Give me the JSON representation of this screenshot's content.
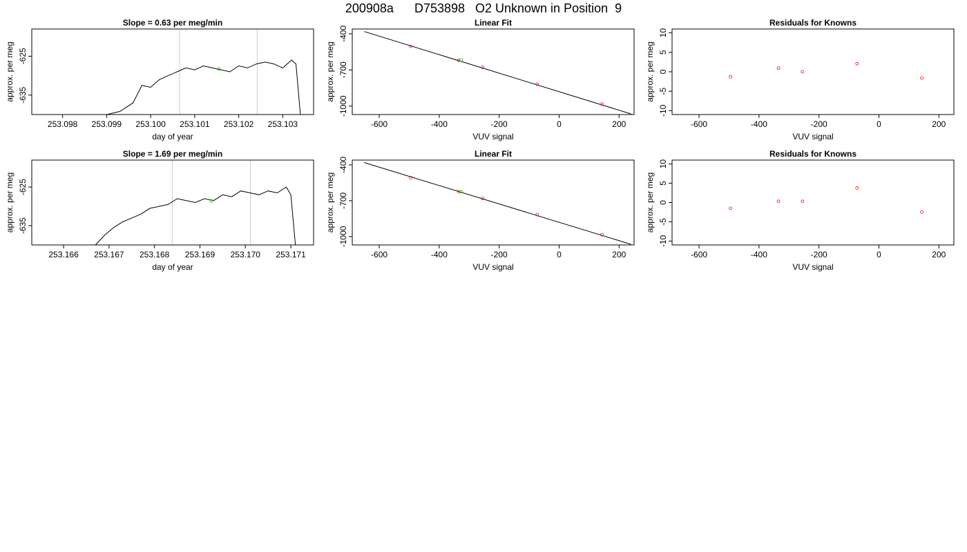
{
  "header": {
    "title": "200908a      D753898   O2 Unknown in Position  9"
  },
  "chart_data": [
    {
      "type": "line",
      "title": "Slope =  0.63  per meg/min",
      "xlabel": "day of year",
      "ylabel": "approx. per meg",
      "xlim": [
        253.0973,
        253.1037
      ],
      "ylim": [
        -640.0,
        -618.0
      ],
      "xticks": [
        253.098,
        253.099,
        253.1,
        253.101,
        253.102,
        253.103
      ],
      "xtick_labels": [
        "253.098",
        "253.099",
        "253.100",
        "253.101",
        "253.102",
        "253.103"
      ],
      "yticks": [
        -625,
        -635
      ],
      "ytick_labels": [
        "-625",
        "-635"
      ],
      "vlines": [
        253.10066,
        253.10242
      ],
      "vline_color": "#cccccc",
      "series": [
        {
          "color": "#000000",
          "x": [
            253.099,
            253.0993,
            253.0996,
            253.0998,
            253.1,
            253.1002,
            253.1004,
            253.1006,
            253.1008,
            253.101,
            253.1012,
            253.1014,
            253.1016,
            253.1018,
            253.102,
            253.1022,
            253.1024,
            253.1026,
            253.1028,
            253.103,
            253.1032,
            253.1033,
            253.1034
          ],
          "y": [
            -640.0,
            -639.2,
            -637.0,
            -632.5,
            -633.0,
            -631.0,
            -630.0,
            -629.0,
            -628.0,
            -628.5,
            -627.5,
            -628.0,
            -628.5,
            -629.0,
            -627.5,
            -628.0,
            -627.0,
            -626.5,
            -627.0,
            -628.0,
            -626.0,
            -627.0,
            -640.0
          ]
        }
      ],
      "highlight_points": {
        "color": "#00cc00",
        "x": [
          253.10155
        ],
        "y": [
          -628.3
        ]
      }
    },
    {
      "type": "scatter",
      "title": "Linear Fit",
      "xlabel": "VUV signal",
      "ylabel": "approx. per meg",
      "xlim": [
        -690,
        250
      ],
      "ylim": [
        -1070,
        -360
      ],
      "xticks": [
        -600,
        -400,
        -200,
        0,
        200
      ],
      "xtick_labels": [
        "-600",
        "-400",
        "-200",
        "0",
        "200"
      ],
      "yticks": [
        -400,
        -700,
        -1000
      ],
      "ytick_labels": [
        "-400",
        "-700",
        "-1000"
      ],
      "fit_line": {
        "x": [
          -650,
          240
        ],
        "y": [
          -381,
          -1065
        ],
        "color": "#000000"
      },
      "points": {
        "color": "#ff0000",
        "x": [
          -495,
          -335,
          -255,
          -73,
          143
        ],
        "y": [
          -504,
          -621,
          -678,
          -818,
          -983
        ]
      },
      "highlight_points": {
        "color": "#00cc00",
        "x": [
          -327
        ],
        "y": [
          -617
        ]
      }
    },
    {
      "type": "scatter",
      "title": "Residuals for Knowns",
      "xlabel": "VUV signal",
      "ylabel": "approx. per meg",
      "xlim": [
        -690,
        250
      ],
      "ylim": [
        -11,
        11
      ],
      "xticks": [
        -600,
        -400,
        -200,
        0,
        200
      ],
      "xtick_labels": [
        "-600",
        "-400",
        "-200",
        "0",
        "200"
      ],
      "yticks": [
        -10,
        -5,
        0,
        5,
        10
      ],
      "ytick_labels": [
        "-10",
        "-5",
        "0",
        "5",
        "10"
      ],
      "points": {
        "color": "#ff0000",
        "x": [
          -495,
          -335,
          -255,
          -73,
          143
        ],
        "y": [
          -1.3,
          0.9,
          0.0,
          2.1,
          -1.6
        ]
      }
    },
    {
      "type": "line",
      "title": "Slope =  1.69  per meg/min",
      "xlabel": "day of year",
      "ylabel": "approx. per meg",
      "xlim": [
        253.1653,
        253.1715
      ],
      "ylim": [
        -640.0,
        -618.0
      ],
      "xticks": [
        253.166,
        253.167,
        253.168,
        253.169,
        253.17,
        253.171
      ],
      "xtick_labels": [
        "253.166",
        "253.167",
        "253.168",
        "253.169",
        "253.170",
        "253.171"
      ],
      "yticks": [
        -625,
        -635
      ],
      "ytick_labels": [
        "-625",
        "-635"
      ],
      "vlines": [
        253.16839,
        253.17011
      ],
      "vline_color": "#cccccc",
      "series": [
        {
          "color": "#000000",
          "x": [
            253.1667,
            253.1669,
            253.1671,
            253.1673,
            253.1675,
            253.1677,
            253.1679,
            253.1681,
            253.1683,
            253.1685,
            253.1687,
            253.1689,
            253.1691,
            253.1693,
            253.1695,
            253.1697,
            253.1699,
            253.1701,
            253.1703,
            253.1705,
            253.1707,
            253.1709,
            253.171,
            253.1711
          ],
          "y": [
            -640.0,
            -637.5,
            -635.5,
            -634.0,
            -633.0,
            -632.0,
            -630.5,
            -630.0,
            -629.5,
            -628.0,
            -628.5,
            -629.0,
            -628.0,
            -628.5,
            -627.0,
            -627.5,
            -626.0,
            -626.5,
            -627.0,
            -626.0,
            -626.5,
            -625.0,
            -627.0,
            -640.0
          ]
        }
      ],
      "highlight_points": {
        "color": "#00cc00",
        "x": [
          253.16925
        ],
        "y": [
          -628.6
        ]
      }
    },
    {
      "type": "scatter",
      "title": "Linear Fit",
      "xlabel": "VUV signal",
      "ylabel": "approx. per meg",
      "xlim": [
        -690,
        250
      ],
      "ylim": [
        -1070,
        -360
      ],
      "xticks": [
        -600,
        -400,
        -200,
        0,
        200
      ],
      "xtick_labels": [
        "-600",
        "-400",
        "-200",
        "0",
        "200"
      ],
      "yticks": [
        -400,
        -700,
        -1000
      ],
      "ytick_labels": [
        "-400",
        "-700",
        "-1000"
      ],
      "fit_line": {
        "x": [
          -650,
          240
        ],
        "y": [
          -381,
          -1065
        ],
        "color": "#000000"
      },
      "points": {
        "color": "#ff0000",
        "x": [
          -495,
          -335,
          -255,
          -73,
          143
        ],
        "y": [
          -507,
          -624,
          -681,
          -816,
          -984
        ]
      },
      "highlight_points": {
        "color": "#00cc00",
        "x": [
          -327
        ],
        "y": [
          -624
        ]
      }
    },
    {
      "type": "scatter",
      "title": "Residuals for Knowns",
      "xlabel": "VUV signal",
      "ylabel": "approx. per meg",
      "xlim": [
        -690,
        250
      ],
      "ylim": [
        -11,
        11
      ],
      "xticks": [
        -600,
        -400,
        -200,
        0,
        200
      ],
      "xtick_labels": [
        "-600",
        "-400",
        "-200",
        "0",
        "200"
      ],
      "yticks": [
        -10,
        -5,
        0,
        5,
        10
      ],
      "ytick_labels": [
        "-10",
        "-5",
        "0",
        "5",
        "10"
      ],
      "points": {
        "color": "#ff0000",
        "x": [
          -495,
          -335,
          -255,
          -73,
          143
        ],
        "y": [
          -1.5,
          0.3,
          0.3,
          3.8,
          -2.5
        ]
      }
    }
  ]
}
